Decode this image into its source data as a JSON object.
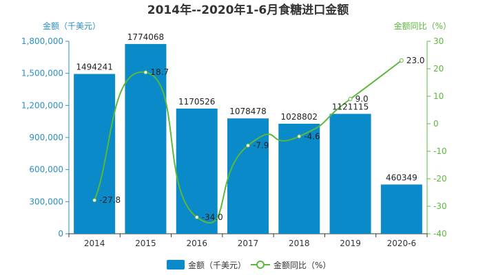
{
  "colors": {
    "bar": "#0a8ac8",
    "line": "#5ab83c",
    "axis_left": "#2a8fc4",
    "axis_right": "#5ab83c",
    "text": "#333333"
  },
  "chart_data": {
    "type": "bar",
    "title": "2014年--2020年1-6月食糖进口金额",
    "categories": [
      "2014",
      "2015",
      "2016",
      "2017",
      "2018",
      "2019",
      "2020-6"
    ],
    "series": [
      {
        "name": "金额（千美元）",
        "type": "bar",
        "axis": "left",
        "values": [
          1494241,
          1774068,
          1170526,
          1078478,
          1028802,
          1121115,
          460349
        ]
      },
      {
        "name": "金额同比（%）",
        "type": "line",
        "axis": "right",
        "values": [
          -27.8,
          18.7,
          -34.0,
          -7.9,
          -4.6,
          9.0,
          23.0
        ]
      }
    ],
    "ylabel_left": "金额（千美元）",
    "ylabel_right": "金额同比（%）",
    "ylim_left": [
      0,
      1800000
    ],
    "ylim_right": [
      -40,
      30
    ],
    "yticks_left": [
      "0",
      "300,000",
      "600,000",
      "900,000",
      "1,200,000",
      "1,500,000",
      "1,800,000"
    ],
    "yticks_right": [
      "-40",
      "-30",
      "-20",
      "-10",
      "0",
      "10",
      "20",
      "30"
    ],
    "bar_labels": [
      "1494241",
      "1774068",
      "1170526",
      "1078478",
      "1028802",
      "1121115",
      "460349"
    ],
    "line_labels": [
      "-27.8",
      "18.7",
      "-34.0",
      "-7.9",
      "-4.6",
      "9.0",
      "23.0"
    ],
    "legend_position": "bottom",
    "grid": false
  }
}
